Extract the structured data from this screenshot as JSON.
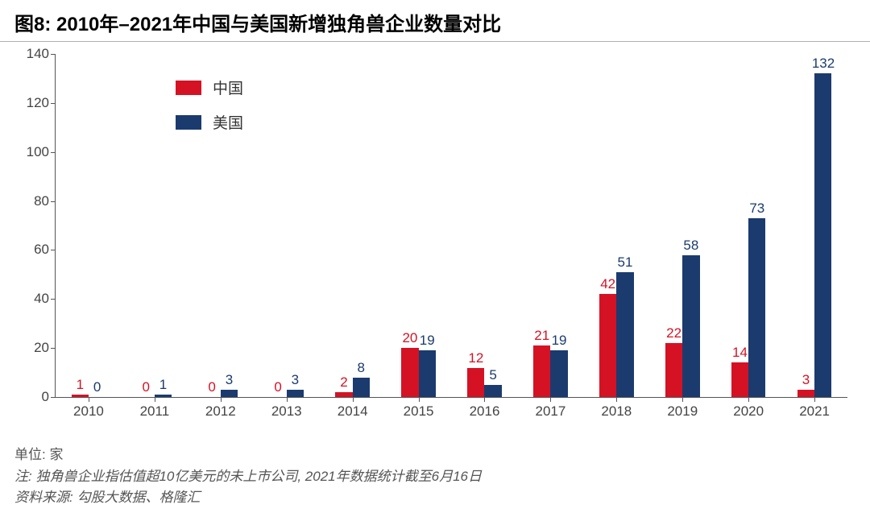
{
  "title": "图8: 2010年–2021年中国与美国新增独角兽企业数量对比",
  "chart": {
    "type": "bar",
    "ylim": [
      0,
      140
    ],
    "ytick_step": 20,
    "yticks": [
      0,
      20,
      40,
      60,
      80,
      100,
      120,
      140
    ],
    "categories": [
      "2010",
      "2011",
      "2012",
      "2013",
      "2014",
      "2015",
      "2016",
      "2017",
      "2018",
      "2019",
      "2020",
      "2021"
    ],
    "series": [
      {
        "name_key": "china",
        "label": "中国",
        "color": "#d51224",
        "values": [
          1,
          0,
          0,
          0,
          2,
          20,
          12,
          21,
          42,
          22,
          14,
          3
        ]
      },
      {
        "name_key": "usa",
        "label": "美国",
        "color": "#1b3b6f",
        "values": [
          0,
          1,
          3,
          3,
          8,
          19,
          5,
          19,
          51,
          58,
          73,
          132
        ]
      }
    ],
    "bar_width_pct": 26,
    "bar_gap_pct": 0,
    "axis_color": "#555555",
    "tick_fontsize": 17,
    "label_fontsize": 17,
    "background_color": "#ffffff"
  },
  "legend": {
    "china": "中国",
    "usa": "美国"
  },
  "footer": {
    "unit": "单位: 家",
    "note": "注: 独角兽企业指估值超10亿美元的未上市公司, 2021年数据统计截至6月16日",
    "source": "资料来源: 勾股大数据、格隆汇"
  }
}
